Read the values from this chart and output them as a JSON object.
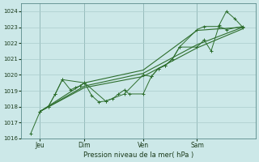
{
  "background_color": "#cce8e8",
  "grid_color": "#aacccc",
  "line_color": "#2d6e2d",
  "title": "Pression niveau de la mer( hPa )",
  "ylim": [
    1016,
    1024.5
  ],
  "yticks": [
    1016,
    1017,
    1018,
    1019,
    1020,
    1021,
    1022,
    1023,
    1024
  ],
  "xtick_labels": [
    "Jeu",
    "Dim",
    "Ven",
    "Sam"
  ],
  "xtick_positions": [
    0.08,
    0.27,
    0.52,
    0.75
  ],
  "vline_positions": [
    0.08,
    0.27,
    0.52,
    0.75
  ],
  "series1_x": [
    0.04,
    0.08,
    0.115,
    0.145,
    0.175,
    0.21,
    0.23,
    0.25,
    0.27,
    0.3,
    0.33,
    0.36,
    0.39,
    0.415,
    0.44,
    0.46,
    0.52,
    0.555,
    0.585,
    0.615,
    0.645,
    0.675,
    0.75,
    0.78,
    0.81,
    0.845,
    0.875,
    0.91,
    0.945
  ],
  "series1_y": [
    1016.3,
    1017.7,
    1018.0,
    1018.8,
    1019.7,
    1019.05,
    1019.2,
    1019.3,
    1019.5,
    1018.7,
    1018.3,
    1018.35,
    1018.5,
    1018.8,
    1019.05,
    1018.8,
    1018.8,
    1019.9,
    1020.4,
    1020.6,
    1021.0,
    1021.75,
    1021.75,
    1022.2,
    1021.5,
    1023.15,
    1024.0,
    1023.55,
    1023.0
  ],
  "series2_x": [
    0.08,
    0.27,
    0.52,
    0.75,
    0.945
  ],
  "series2_y": [
    1017.7,
    1019.5,
    1020.3,
    1022.8,
    1023.0
  ],
  "series3_x": [
    0.08,
    0.27,
    0.52,
    0.75,
    0.945
  ],
  "series3_y": [
    1017.7,
    1019.2,
    1019.9,
    1021.7,
    1022.9
  ],
  "series4_x": [
    0.08,
    0.27,
    0.52,
    0.75,
    0.945
  ],
  "series4_y": [
    1017.7,
    1019.3,
    1020.1,
    1021.9,
    1023.0
  ],
  "series5_x": [
    0.08,
    0.115,
    0.145,
    0.175,
    0.27,
    0.36,
    0.44,
    0.52,
    0.555,
    0.585,
    0.615,
    0.645,
    0.675,
    0.75,
    0.78,
    0.845,
    0.875,
    0.945
  ],
  "series5_y": [
    1017.7,
    1018.0,
    1018.8,
    1019.7,
    1019.5,
    1018.35,
    1018.8,
    1020.0,
    1019.9,
    1020.4,
    1020.6,
    1021.0,
    1021.75,
    1022.85,
    1023.05,
    1023.05,
    1022.85,
    1023.05
  ]
}
